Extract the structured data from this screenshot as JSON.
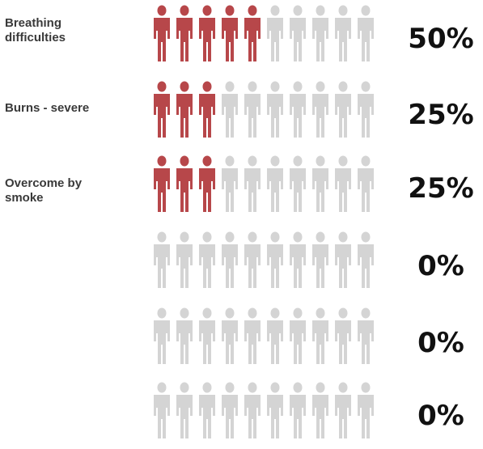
{
  "chart_data": {
    "type": "pictograph",
    "icons_per_row": 10,
    "value_unit": "%",
    "filled_color": "#b7474a",
    "empty_color": "#d4d4d4",
    "rows": [
      {
        "label": "Breathing\ndifficulties",
        "value": 50,
        "value_label": "50%"
      },
      {
        "label": "Burns - severe",
        "value": 25,
        "value_label": "25%"
      },
      {
        "label": "Overcome by\nsmoke",
        "value": 25,
        "value_label": "25%"
      },
      {
        "label": "",
        "value": 0,
        "value_label": "0%"
      },
      {
        "label": "",
        "value": 0,
        "value_label": "0%"
      },
      {
        "label": "",
        "value": 0,
        "value_label": "0%"
      }
    ]
  }
}
